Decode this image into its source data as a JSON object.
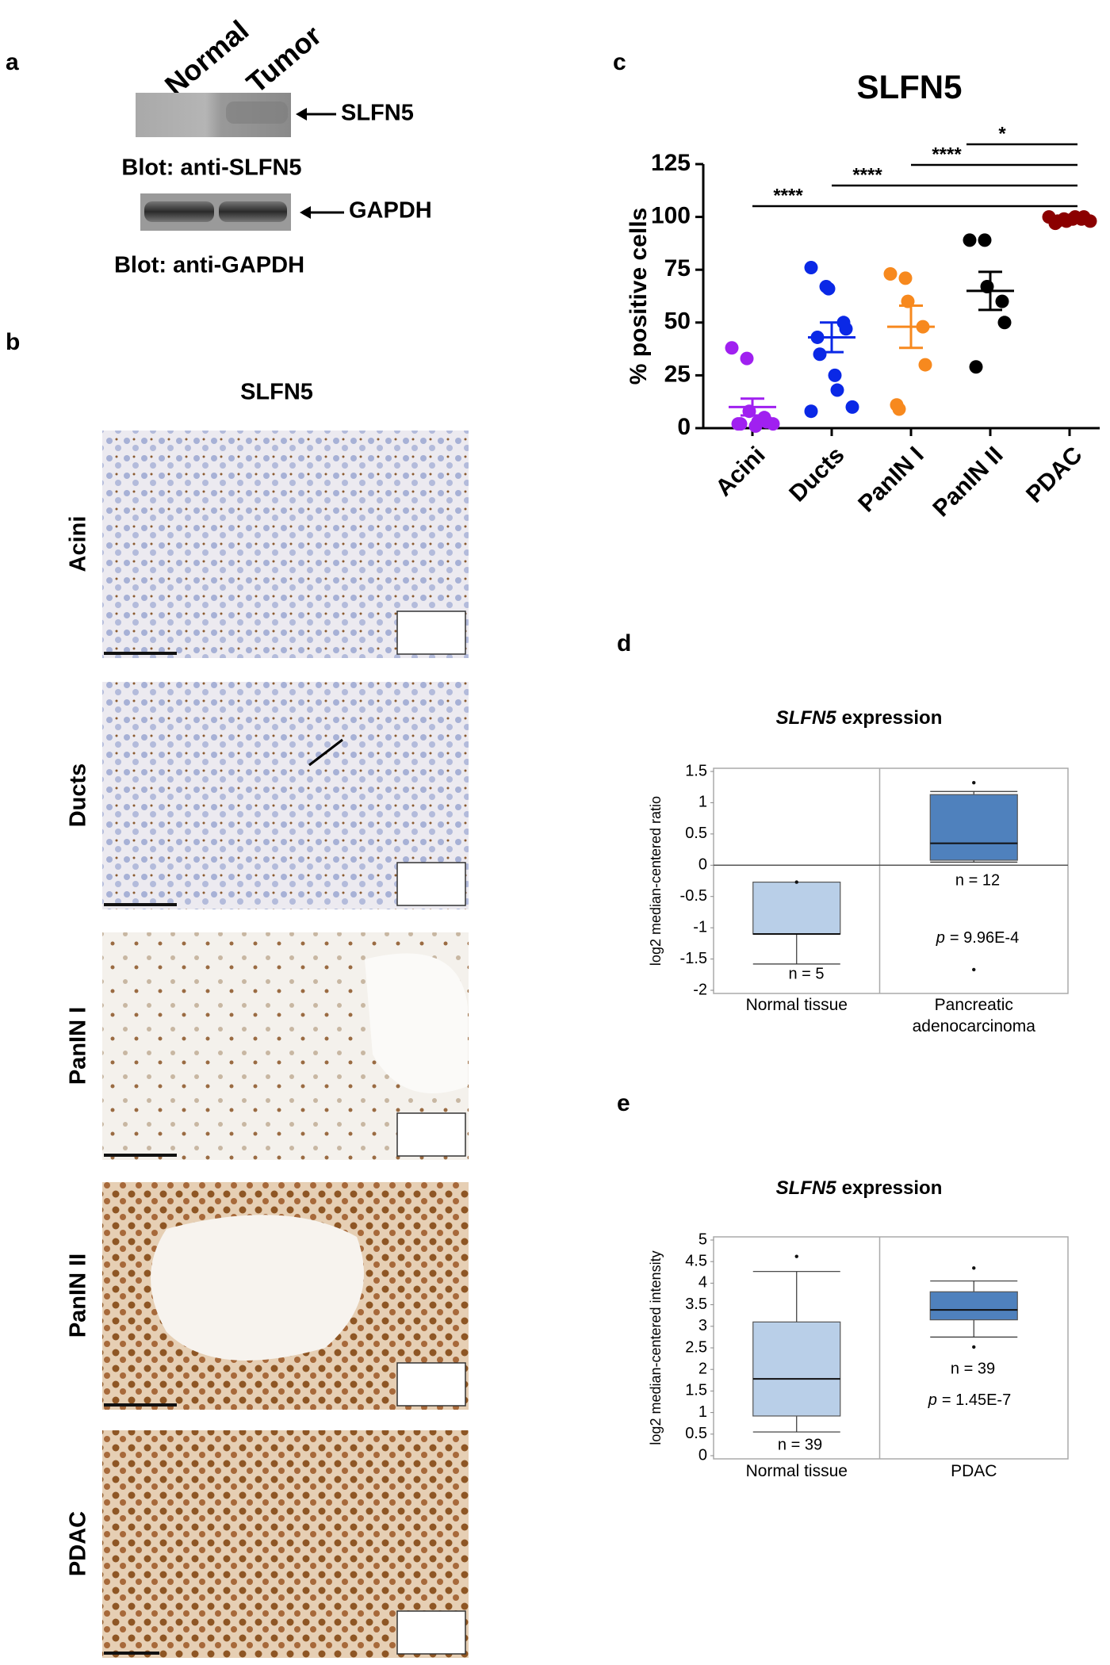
{
  "panel_labels": [
    "a",
    "b",
    "c",
    "d",
    "e"
  ],
  "western_blot": {
    "lanes": [
      "Normal",
      "Tumor"
    ],
    "targets": [
      "SLFN5",
      "GAPDH"
    ],
    "captions": [
      "Blot: anti-SLFN5",
      "Blot: anti-GAPDH"
    ]
  },
  "ihc": {
    "title": "SLFN5",
    "rows": [
      "Acini",
      "Ducts",
      "PanIN I",
      "PanIN II",
      "PDAC"
    ]
  },
  "chart_data": [
    {
      "type": "dot",
      "title": "SLFN5",
      "ylabel": "% positive cells",
      "categories": [
        "Acini",
        "Ducts",
        "PanIN I",
        "PanIN II",
        "PDAC"
      ],
      "colors": [
        "#a020f0",
        "#0a28e6",
        "#f7891e",
        "#000000",
        "#8b0000"
      ],
      "values": [
        [
          38,
          33,
          8,
          5,
          3,
          2,
          2,
          1,
          3,
          2
        ],
        [
          76,
          67,
          66,
          50,
          47,
          43,
          35,
          25,
          18,
          10,
          8
        ],
        [
          73,
          71,
          60,
          48,
          30,
          11,
          9
        ],
        [
          89,
          89,
          67,
          60,
          50,
          29
        ],
        [
          100,
          99,
          98,
          99,
          100,
          97,
          98,
          99,
          100,
          98
        ]
      ],
      "means": [
        10,
        43,
        48,
        65,
        99
      ],
      "errors": [
        4,
        7,
        10,
        9,
        0.5
      ],
      "ylim": [
        0,
        125
      ],
      "yticks": [
        0,
        25,
        50,
        75,
        100,
        125
      ],
      "annotations": [
        "****",
        "****",
        "****",
        "*"
      ]
    },
    {
      "type": "box",
      "title": {
        "gene": "SLFN5",
        "text": "expression"
      },
      "ylabel": "log2 median-centered ratio",
      "categories": [
        "Normal tissue",
        "Pancreatic adenocarcinoma"
      ],
      "colors": [
        "#b9cfe8",
        "#4f81bd"
      ],
      "boxes": [
        {
          "whislo": -1.58,
          "q1": -1.1,
          "median": -1.1,
          "q3": -0.27,
          "whishi": -0.27,
          "outliers": [
            -0.27
          ]
        },
        {
          "whislo": 0.05,
          "q1": 0.08,
          "median": 0.35,
          "q3": 1.13,
          "whishi": 1.18,
          "outliers": [
            1.32,
            -1.67
          ]
        }
      ],
      "n_labels": [
        "n = 5",
        "n = 12"
      ],
      "p": {
        "symbol": "p",
        "text": "= 9.96E-4"
      },
      "ylim": [
        -2,
        1.5
      ],
      "yticks": [
        -2,
        -1.5,
        -1,
        -0.5,
        0,
        0.5,
        1,
        1.5
      ]
    },
    {
      "type": "box",
      "title": {
        "gene": "SLFN5",
        "text": "expression"
      },
      "ylabel": "log2 median-centered intensity",
      "categories": [
        "Normal tissue",
        "PDAC"
      ],
      "colors": [
        "#b9cfe8",
        "#4f81bd"
      ],
      "boxes": [
        {
          "whislo": 0.55,
          "q1": 0.92,
          "median": 1.78,
          "q3": 3.1,
          "whishi": 4.27,
          "outliers": [
            4.62
          ]
        },
        {
          "whislo": 2.75,
          "q1": 3.15,
          "median": 3.38,
          "q3": 3.8,
          "whishi": 4.05,
          "outliers": [
            4.35,
            2.52
          ]
        }
      ],
      "n_labels": [
        "n = 39",
        "n = 39"
      ],
      "p": {
        "symbol": "p",
        "text": "= 1.45E-7"
      },
      "ylim": [
        0,
        5
      ],
      "yticks": [
        0,
        0.5,
        1,
        1.5,
        2,
        2.5,
        3,
        3.5,
        4,
        4.5,
        5
      ]
    }
  ]
}
